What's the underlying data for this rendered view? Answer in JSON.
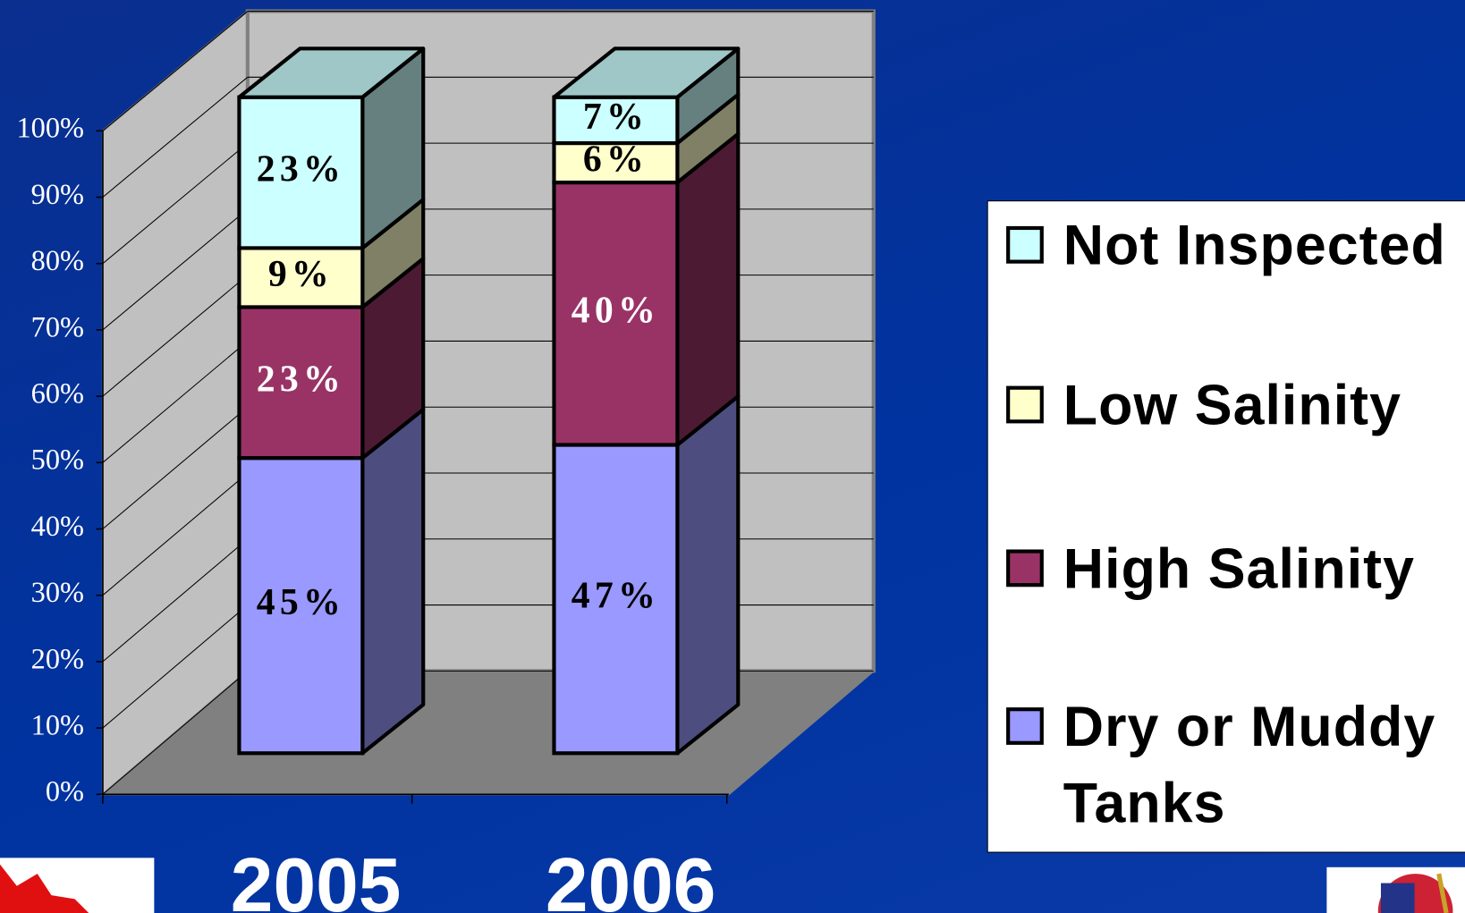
{
  "chart_data": {
    "type": "bar3d_stacked",
    "categories": [
      "2005",
      "2006"
    ],
    "series": [
      {
        "name": "Dry or Muddy Tanks",
        "color": "#9999ff",
        "values": [
          45,
          47
        ],
        "value_labels": [
          "45%",
          "47%"
        ]
      },
      {
        "name": "High Salinity",
        "color": "#993366",
        "values": [
          23,
          40
        ],
        "value_labels": [
          "23%",
          "40%"
        ]
      },
      {
        "name": "Low Salinity",
        "color": "#ffffcc",
        "values": [
          9,
          6
        ],
        "value_labels": [
          "9%",
          "6%"
        ]
      },
      {
        "name": "Not Inspected",
        "color": "#ccffff",
        "values": [
          23,
          7
        ],
        "value_labels": [
          "23%",
          "7%"
        ]
      }
    ],
    "ylim": [
      0,
      100
    ],
    "yticks": [
      {
        "value": 0,
        "label": "0%"
      },
      {
        "value": 10,
        "label": "10%"
      },
      {
        "value": 20,
        "label": "20%"
      },
      {
        "value": 30,
        "label": "30%"
      },
      {
        "value": 40,
        "label": "40%"
      },
      {
        "value": 50,
        "label": "50%"
      },
      {
        "value": 60,
        "label": "60%"
      },
      {
        "value": 70,
        "label": "70%"
      },
      {
        "value": 80,
        "label": "80%"
      },
      {
        "value": 90,
        "label": "90%"
      },
      {
        "value": 100,
        "label": "100%"
      }
    ],
    "grid": true,
    "legend": "right"
  }
}
